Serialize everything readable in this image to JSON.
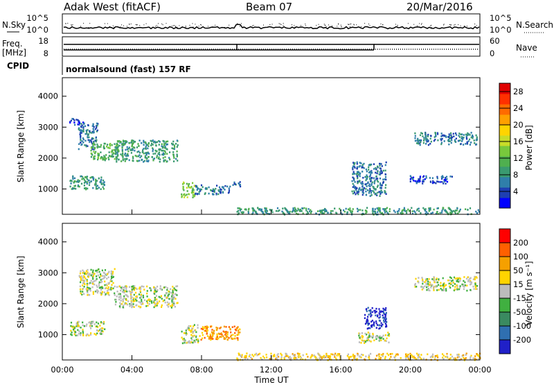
{
  "header": {
    "station": "Adak West (fitACF)",
    "beam": "Beam 07",
    "date": "20/Mar/2016"
  },
  "top_panels": {
    "nsky_label": "N.Sky",
    "nsearch_label": "N.Search",
    "noise_ticks": [
      "10^5",
      "10^0"
    ],
    "freq_label": "Freq.",
    "freq_unit": "[MHz]",
    "freq_ticks": [
      "18",
      "8"
    ],
    "nave_label": "Nave",
    "nave_ticks": [
      "60",
      "0"
    ],
    "cpid_label": "CPID",
    "cpid_text": "normalsound (fast) 157 RF"
  },
  "panels": {
    "power": {
      "ylabel": "Slant Range [km]",
      "cbar_label": "Power [dB]"
    },
    "velocity": {
      "ylabel": "Slant Range [km]",
      "cbar_label": "Velocity [m s⁻¹]"
    }
  },
  "chart_data": [
    {
      "type": "heatmap",
      "title": "Power",
      "xlabel": "Time UT",
      "ylabel": "Slant Range [km]",
      "x_ticks": [
        "00:00",
        "04:00",
        "08:00",
        "12:00",
        "16:00",
        "20:00",
        "00:00"
      ],
      "y_ticks": [
        1000,
        2000,
        3000,
        4000
      ],
      "xlim_hours": [
        0,
        24
      ],
      "ylim_km": [
        180,
        4600
      ],
      "colorbar": {
        "label": "Power [dB]",
        "ticks": [
          4,
          8,
          12,
          16,
          20,
          24,
          28
        ],
        "range": [
          0,
          30
        ],
        "colors": [
          "#0000ff",
          "#1e3fb2",
          "#2f7faa",
          "#3a9a70",
          "#4faf4f",
          "#78c83c",
          "#c8dc28",
          "#ffd400",
          "#ffa000",
          "#ff6a00",
          "#ff3000",
          "#e00000"
        ]
      },
      "regions": [
        {
          "t0": 0.4,
          "t1": 2.4,
          "r0": 1000,
          "r1": 1450,
          "level": 3
        },
        {
          "t0": 0.4,
          "t1": 1.2,
          "r0": 3100,
          "r1": 3300,
          "level": 1
        },
        {
          "t0": 0.9,
          "t1": 2.0,
          "r0": 2300,
          "r1": 3150,
          "level": 2
        },
        {
          "t0": 1.6,
          "t1": 3.2,
          "r0": 1950,
          "r1": 2500,
          "level": 4
        },
        {
          "t0": 3.0,
          "t1": 6.6,
          "r0": 1900,
          "r1": 2600,
          "level": 3
        },
        {
          "t0": 6.8,
          "t1": 7.6,
          "r0": 750,
          "r1": 1250,
          "level": 5
        },
        {
          "t0": 7.6,
          "t1": 9.6,
          "r0": 850,
          "r1": 1150,
          "level": 2
        },
        {
          "t0": 9.7,
          "t1": 10.2,
          "r0": 1100,
          "r1": 1300,
          "level": 2
        },
        {
          "t0": 16.6,
          "t1": 18.6,
          "r0": 800,
          "r1": 1900,
          "level": 2
        },
        {
          "t0": 19.9,
          "t1": 22.4,
          "r0": 1200,
          "r1": 1450,
          "level": 1
        },
        {
          "t0": 20.2,
          "t1": 23.8,
          "r0": 2450,
          "r1": 2850,
          "level": 2
        },
        {
          "t0": 10.0,
          "t1": 24.0,
          "r0": 200,
          "r1": 420,
          "level": 3
        }
      ]
    },
    {
      "type": "heatmap",
      "title": "Velocity",
      "xlabel": "Time UT",
      "ylabel": "Slant Range [km]",
      "x_ticks": [
        "00:00",
        "04:00",
        "08:00",
        "12:00",
        "16:00",
        "20:00",
        "00:00"
      ],
      "y_ticks": [
        1000,
        2000,
        3000,
        4000
      ],
      "xlim_hours": [
        0,
        24
      ],
      "ylim_km": [
        180,
        4600
      ],
      "colorbar": {
        "label": "Velocity [m s⁻¹]",
        "ticks": [
          200,
          100,
          50,
          15,
          -15,
          -50,
          -100,
          -200
        ],
        "colors": [
          "#2020c8",
          "#2f6fb0",
          "#3a8a60",
          "#40b040",
          "#bcbcbc",
          "#ffd400",
          "#f5a000",
          "#ff6000",
          "#ff0000"
        ]
      },
      "regions": [
        {
          "t0": 0.4,
          "t1": 2.4,
          "r0": 1000,
          "r1": 1450,
          "level": 4
        },
        {
          "t0": 0.9,
          "t1": 3.0,
          "r0": 2300,
          "r1": 3150,
          "level": 4
        },
        {
          "t0": 3.0,
          "t1": 6.6,
          "r0": 1900,
          "r1": 2600,
          "level": 4
        },
        {
          "t0": 6.8,
          "t1": 7.8,
          "r0": 750,
          "r1": 1350,
          "level": 4
        },
        {
          "t0": 7.8,
          "t1": 10.2,
          "r0": 850,
          "r1": 1300,
          "level": 6
        },
        {
          "t0": 17.3,
          "t1": 18.6,
          "r0": 1200,
          "r1": 1900,
          "level": 0
        },
        {
          "t0": 17.0,
          "t1": 18.8,
          "r0": 750,
          "r1": 1100,
          "level": 4
        },
        {
          "t0": 20.2,
          "t1": 23.8,
          "r0": 2450,
          "r1": 2900,
          "level": 4
        },
        {
          "t0": 10.0,
          "t1": 24.0,
          "r0": 200,
          "r1": 420,
          "level": 5
        }
      ]
    }
  ]
}
